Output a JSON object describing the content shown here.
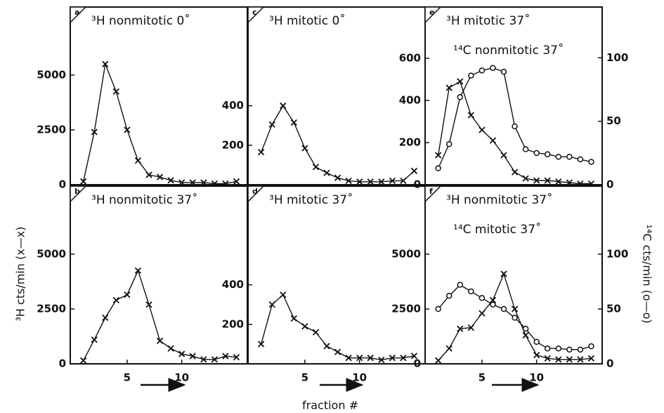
{
  "chart_data": [
    {
      "type": "line",
      "panel": "a",
      "title": "³H nonmitotic 0˚",
      "x": [
        1,
        2,
        3,
        4,
        5,
        6,
        7,
        8,
        9,
        10,
        11,
        12,
        13,
        14,
        15
      ],
      "xlim": [
        -0.2,
        16
      ],
      "ylim": [
        0,
        8100
      ],
      "yticks": [
        0,
        2500,
        5000
      ],
      "series": [
        {
          "marker": "x",
          "color": "#111111",
          "values": [
            150,
            2400,
            5500,
            4250,
            2500,
            1100,
            450,
            350,
            200,
            100,
            100,
            100,
            50,
            50,
            150
          ]
        }
      ]
    },
    {
      "type": "line",
      "panel": "c",
      "title": "³H mitotic 0˚",
      "x": [
        1,
        2,
        3,
        4,
        5,
        6,
        7,
        8,
        9,
        10,
        11,
        12,
        13,
        14,
        15
      ],
      "xlim": [
        -0.2,
        16
      ],
      "ylim": [
        0,
        900
      ],
      "yticks": [
        200,
        400
      ],
      "series": [
        {
          "marker": "x",
          "color": "#111111",
          "values": [
            165,
            305,
            400,
            315,
            185,
            90,
            60,
            35,
            20,
            15,
            15,
            15,
            20,
            20,
            70
          ]
        }
      ]
    },
    {
      "type": "line",
      "panel": "e",
      "title": "³H mitotic 37˚",
      "subtitle": "¹⁴C nonmitotic 37˚",
      "x": [
        1,
        2,
        3,
        4,
        5,
        6,
        7,
        8,
        9,
        10,
        11,
        12,
        13,
        14,
        15
      ],
      "xlim": [
        -0.2,
        16
      ],
      "ylim": [
        0,
        843
      ],
      "yticks": [
        0,
        200,
        400,
        600
      ],
      "y2lim": [
        0,
        140
      ],
      "y2ticks": [
        0,
        50,
        100
      ],
      "series": [
        {
          "marker": "x",
          "color": "#111111",
          "values": [
            140,
            460,
            490,
            330,
            260,
            210,
            140,
            60,
            30,
            20,
            20,
            15,
            10,
            5,
            5
          ]
        },
        {
          "marker": "o",
          "color": "#111111",
          "axis": "y2",
          "values": [
            13,
            32,
            69,
            86,
            90,
            92,
            89,
            46,
            28,
            25,
            24,
            22,
            22,
            20,
            18
          ]
        }
      ]
    },
    {
      "type": "line",
      "panel": "b",
      "title": "³H nonmitotic 37˚",
      "x": [
        1,
        2,
        3,
        4,
        5,
        6,
        7,
        8,
        9,
        10,
        11,
        12,
        13,
        14,
        15
      ],
      "xlim": [
        -0.2,
        16
      ],
      "xticks": [
        5,
        10
      ],
      "ylim": [
        0,
        8100
      ],
      "yticks": [
        0,
        2500,
        5000
      ],
      "series": [
        {
          "marker": "x",
          "color": "#111111",
          "values": [
            150,
            1100,
            2100,
            2900,
            3150,
            4250,
            2700,
            1050,
            700,
            450,
            350,
            200,
            200,
            350,
            300
          ]
        }
      ]
    },
    {
      "type": "line",
      "panel": "d",
      "title": "³H mitotic 37˚",
      "x": [
        1,
        2,
        3,
        4,
        5,
        6,
        7,
        8,
        9,
        10,
        11,
        12,
        13,
        14,
        15
      ],
      "xlim": [
        -0.2,
        16
      ],
      "xticks": [
        5,
        10
      ],
      "ylim": [
        0,
        900
      ],
      "yticks": [
        200,
        400
      ],
      "series": [
        {
          "marker": "x",
          "color": "#111111",
          "values": [
            100,
            300,
            350,
            230,
            190,
            160,
            90,
            60,
            30,
            30,
            30,
            20,
            30,
            30,
            40
          ]
        }
      ]
    },
    {
      "type": "line",
      "panel": "f",
      "title": "³H nonmitotic 37˚",
      "subtitle": "¹⁴C mitotic 37˚",
      "x": [
        1,
        2,
        3,
        4,
        5,
        6,
        7,
        8,
        9,
        10,
        11,
        12,
        13,
        14,
        15
      ],
      "xlim": [
        -0.2,
        16
      ],
      "xticks": [
        5,
        10
      ],
      "ylim": [
        0,
        8100
      ],
      "yticks": [
        0,
        2500,
        5000
      ],
      "y2lim": [
        0,
        162
      ],
      "y2ticks": [
        0,
        50,
        100
      ],
      "series": [
        {
          "marker": "x",
          "color": "#111111",
          "values": [
            150,
            700,
            1600,
            1650,
            2300,
            2900,
            4100,
            2500,
            1300,
            400,
            250,
            200,
            200,
            200,
            250
          ]
        },
        {
          "marker": "o",
          "color": "#111111",
          "axis": "y2",
          "values": [
            50,
            62,
            72,
            66,
            60,
            54,
            50,
            42,
            32,
            20,
            14,
            14,
            13,
            13,
            16
          ]
        }
      ]
    }
  ],
  "figure": {
    "ylabel": "³H cts/min (x—x)",
    "y2label": "¹⁴C cts/min (o—o)",
    "xlabel": "fraction #"
  }
}
